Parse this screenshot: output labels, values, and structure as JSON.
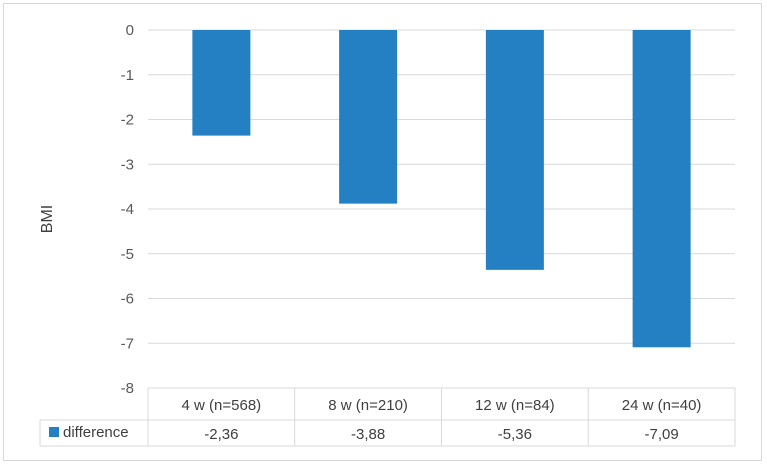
{
  "chart_data": {
    "type": "bar",
    "title": "",
    "xlabel": "",
    "ylabel": "BMI",
    "ylim": [
      -8,
      0
    ],
    "yticks": [
      0,
      -1,
      -2,
      -3,
      -4,
      -5,
      -6,
      -7,
      -8
    ],
    "grid": true,
    "legend": "bottom-left (data table row key)",
    "categories": [
      "4 w (n=568)",
      "8 w (n=210)",
      "12 w (n=84)",
      "24 w (n=40)"
    ],
    "series": [
      {
        "name": "difference",
        "color": "#2480c2",
        "values": [
          -2.36,
          -3.88,
          -5.36,
          -7.09
        ],
        "value_labels": [
          "-2,36",
          "-3,88",
          "-5,36",
          "-7,09"
        ]
      }
    ]
  }
}
